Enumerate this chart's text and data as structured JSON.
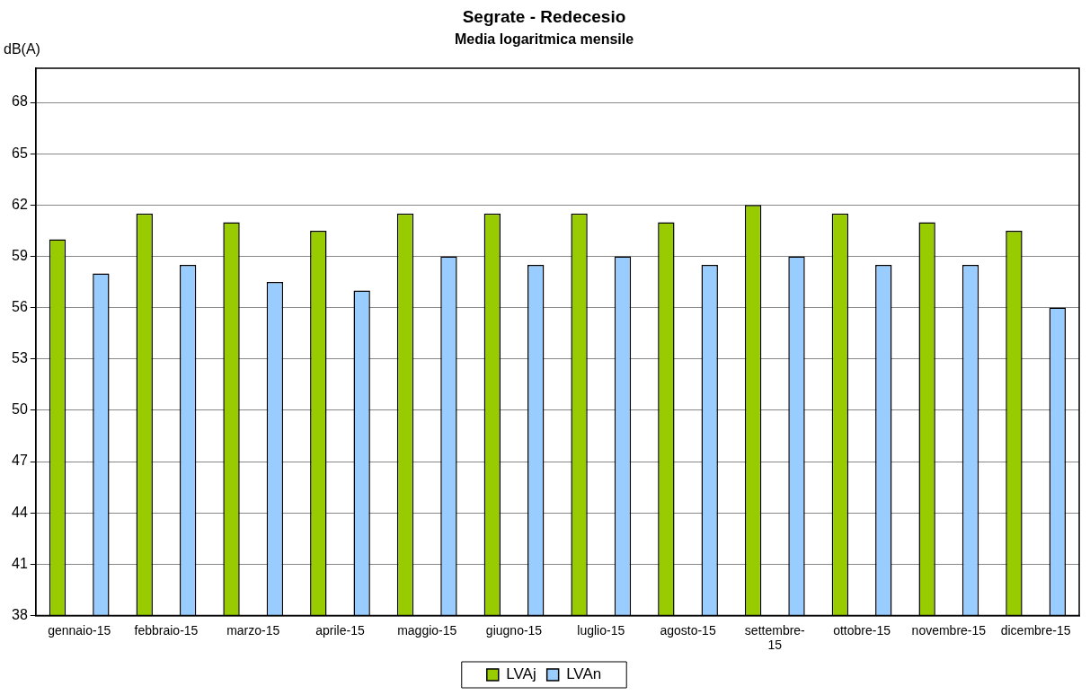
{
  "chart_data": {
    "type": "bar",
    "title": "Segrate - Redecesio",
    "subtitle": "Media logaritmica mensile",
    "ylabel": "dB(A)",
    "categories": [
      "gennaio-15",
      "febbraio-15",
      "marzo-15",
      "aprile-15",
      "maggio-15",
      "giugno-15",
      "luglio-15",
      "agosto-15",
      "settembre-15",
      "ottobre-15",
      "novembre-15",
      "dicembre-15"
    ],
    "series": [
      {
        "name": "LVAj",
        "color": "#99cc00",
        "values": [
          60,
          61.5,
          61,
          60.5,
          61.5,
          61.5,
          61.5,
          61,
          62,
          61.5,
          61,
          60.5
        ]
      },
      {
        "name": "LVAn",
        "color": "#99ccff",
        "values": [
          58,
          58.5,
          57.5,
          57,
          59,
          58.5,
          59,
          58.5,
          59,
          58.5,
          58.5,
          56
        ]
      }
    ],
    "ylim": [
      38,
      70
    ],
    "yticks": [
      38,
      41,
      44,
      47,
      50,
      53,
      56,
      59,
      62,
      65,
      68
    ],
    "grid": "y",
    "legend": "bottom"
  }
}
